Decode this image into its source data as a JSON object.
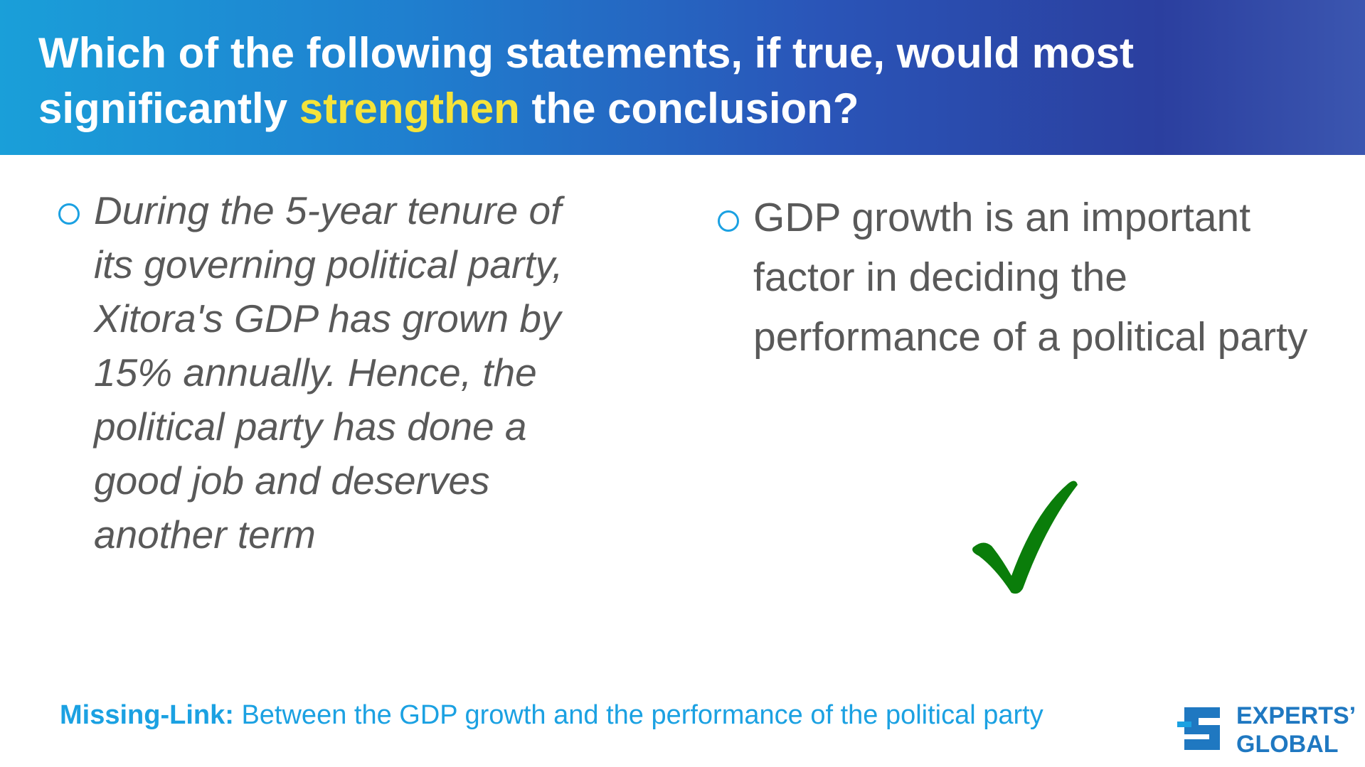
{
  "header": {
    "title_before": "Which of the following statements, if true, would most significantly",
    "title_highlight": "strengthen",
    "title_after": "the conclusion?"
  },
  "options": [
    {
      "text": "During the 5-year tenure of its governing political party, Xitora's GDP has grown by 15% annually. Hence, the political party has done a good job and deserves another term"
    },
    {
      "text": "GDP growth is an important factor in deciding the performance of a political party"
    }
  ],
  "footer": {
    "label": "Missing-Link:",
    "text": "Between the GDP growth and the performance of the political party"
  },
  "logo": {
    "line1": "EXPERTS’",
    "line2": "GLOBAL"
  }
}
